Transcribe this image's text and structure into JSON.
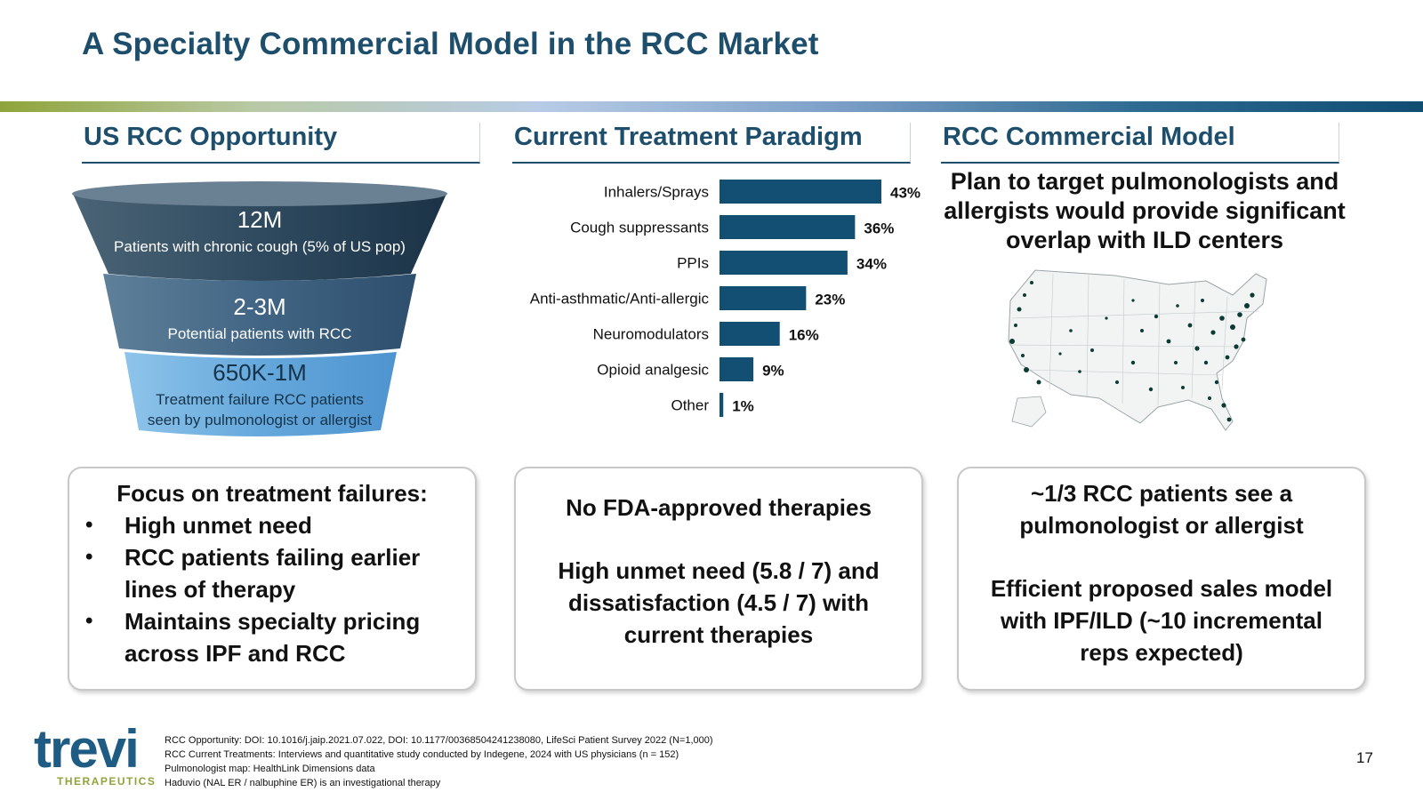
{
  "title": "A Specialty Commercial Model in the RCC Market",
  "columns": {
    "opportunity": "US RCC Opportunity",
    "paradigm": "Current Treatment Paradigm",
    "commercial": "RCC Commercial Model"
  },
  "funnel": [
    {
      "value": "12M",
      "label": "Patients with chronic cough (5% of US pop)"
    },
    {
      "value": "2-3M",
      "label": "Potential patients with RCC"
    },
    {
      "value": "650K-1M",
      "label_line1": "Treatment failure RCC patients",
      "label_line2": "seen by pulmonologist or allergist"
    }
  ],
  "chart_data": {
    "type": "bar",
    "orientation": "horizontal",
    "categories": [
      "Inhalers/Sprays",
      "Cough suppressants",
      "PPIs",
      "Anti-asthmatic/Anti-allergic",
      "Neuromodulators",
      "Opioid analgesic",
      "Other"
    ],
    "values": [
      43,
      36,
      34,
      23,
      16,
      9,
      1
    ],
    "value_labels": [
      "43%",
      "36%",
      "34%",
      "23%",
      "16%",
      "9%",
      "1%"
    ],
    "bar_color": "#134f72",
    "xlim": [
      0,
      43
    ]
  },
  "commercial_text": {
    "line1": "Plan to target pulmonologists and",
    "line2": "allergists would provide significant",
    "line3": "overlap with ILD centers"
  },
  "boxes": {
    "left": {
      "heading": "Focus on treatment failures:",
      "bullets": [
        {
          "l1": "High unmet need"
        },
        {
          "l1": "RCC patients failing earlier",
          "l2": "lines of therapy"
        },
        {
          "l1": "Maintains specialty pricing",
          "l2": "across IPF and RCC"
        }
      ]
    },
    "middle": {
      "line1": "No FDA-approved therapies",
      "line2": "High unmet need (5.8 / 7) and",
      "line3": "dissatisfaction (4.5 / 7) with",
      "line4": "current therapies"
    },
    "right": {
      "line1": "~1/3 RCC patients see a",
      "line2": "pulmonologist or allergist",
      "line3": "Efficient proposed sales model",
      "line4": "with IPF/ILD (~10 incremental",
      "line5": "reps expected)"
    }
  },
  "logo": {
    "word": "trevi",
    "sub": "THERAPEUTICS"
  },
  "footnotes": [
    "RCC Opportunity: DOI: 10.1016/j.jaip.2021.07.022, DOI: 10.1177/00368504241238080, LifeSci Patient Survey 2022 (N=1,000)",
    "RCC Current Treatments: Interviews and quantitative study conducted by Indegene, 2024 with US physicians (n = 152)",
    "Pulmonologist map: HealthLink Dimensions data",
    "Haduvio (NAL ER / nalbuphine ER) is an investigational therapy"
  ],
  "page_number": "17",
  "icons": {
    "map": "us-pulmonologist-map-icon"
  }
}
